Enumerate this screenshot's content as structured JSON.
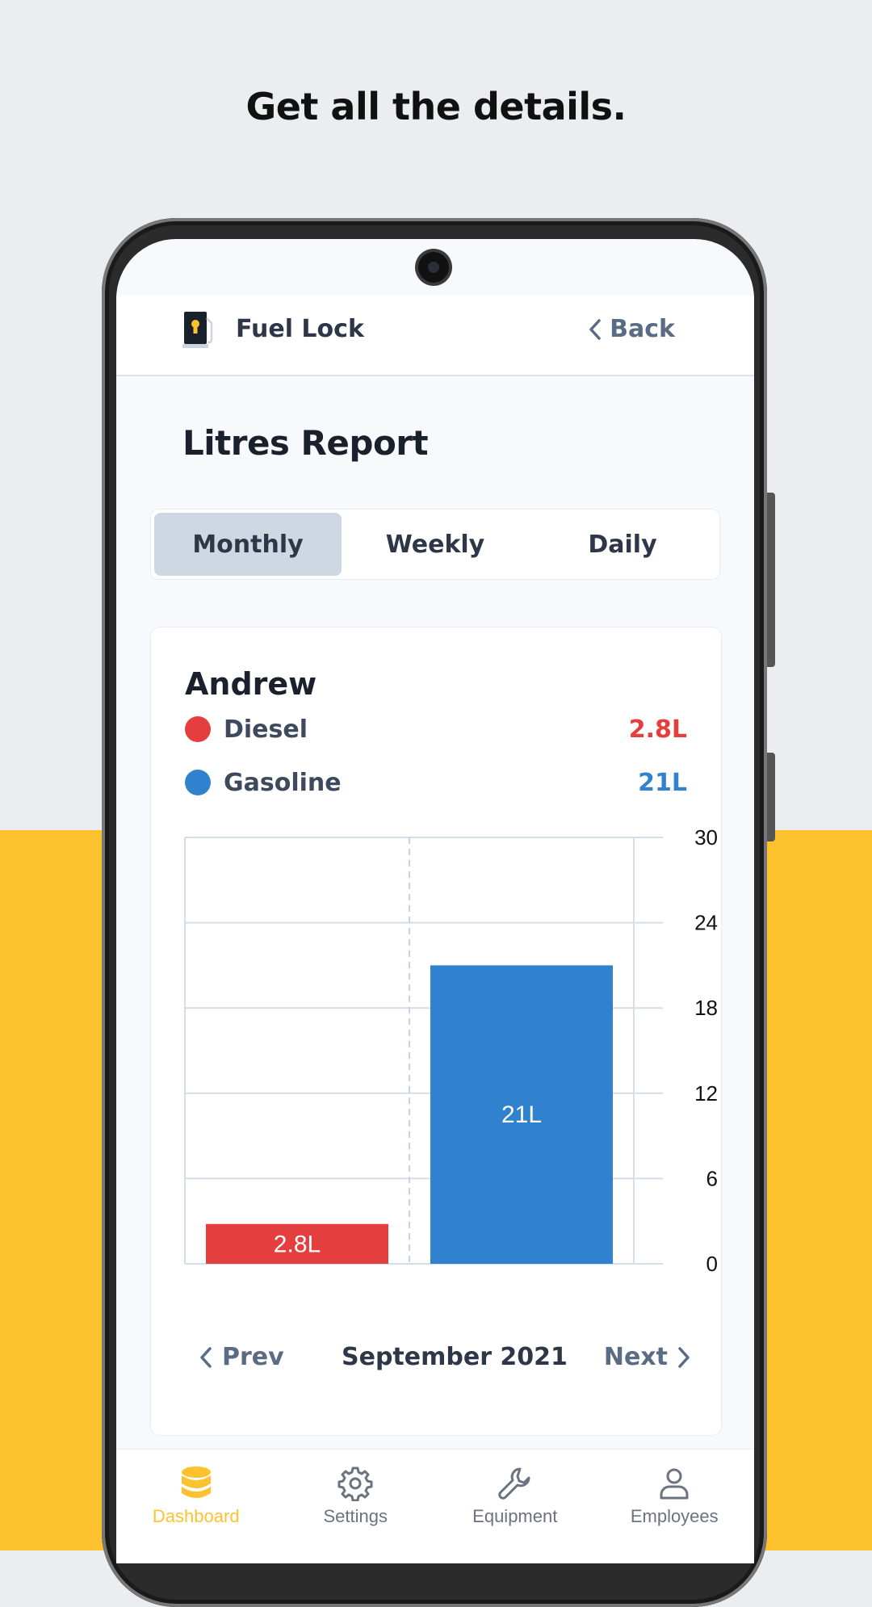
{
  "headline": "Get all the details.",
  "appbar": {
    "app_name": "Fuel Lock",
    "back_label": "Back"
  },
  "page_title": "Litres Report",
  "tabs": [
    {
      "label": "Monthly",
      "active": true
    },
    {
      "label": "Weekly",
      "active": false
    },
    {
      "label": "Daily",
      "active": false
    }
  ],
  "report": {
    "person": "Andrew",
    "legend": [
      {
        "name": "Diesel",
        "value_label": "2.8L",
        "color": "#E53E3E"
      },
      {
        "name": "Gasoline",
        "value_label": "21L",
        "color": "#3182CE"
      }
    ]
  },
  "chart_data": {
    "type": "bar",
    "categories": [
      "Diesel",
      "Gasoline"
    ],
    "values": [
      2.8,
      21
    ],
    "data_labels": [
      "2.8L",
      "21L"
    ],
    "colors": [
      "#E53E3E",
      "#3182CE"
    ],
    "ylim": [
      0,
      30
    ],
    "yticks": [
      0,
      6,
      12,
      18,
      24,
      30
    ],
    "y_axis_side": "right",
    "grid": true
  },
  "pager": {
    "prev_label": "Prev",
    "period": "September 2021",
    "next_label": "Next"
  },
  "bottom_nav": [
    {
      "label": "Dashboard",
      "icon": "database-icon",
      "active": true
    },
    {
      "label": "Settings",
      "icon": "gear-icon",
      "active": false
    },
    {
      "label": "Equipment",
      "icon": "wrench-icon",
      "active": false
    },
    {
      "label": "Employees",
      "icon": "person-icon",
      "active": false
    }
  ],
  "colors": {
    "accent_yellow": "#FDC22D",
    "diesel": "#E53E3E",
    "gasoline": "#3182CE",
    "background": "#EBEDF0"
  }
}
